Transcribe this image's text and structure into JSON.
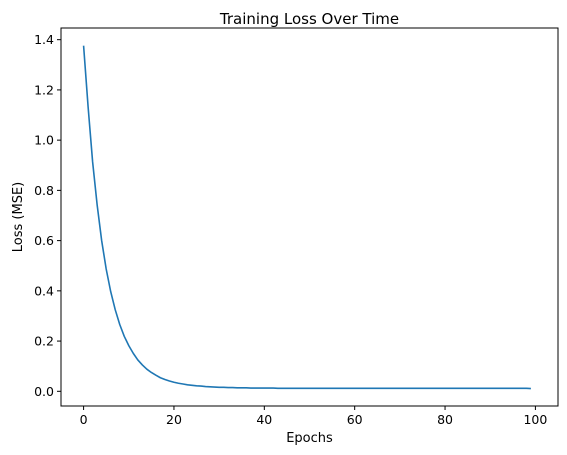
{
  "chart_data": {
    "type": "line",
    "title": "Training Loss Over Time",
    "xlabel": "Epochs",
    "ylabel": "Loss (MSE)",
    "xlim": [
      -5,
      105
    ],
    "ylim": [
      -0.0585,
      1.4465
    ],
    "xticks": [
      0,
      20,
      40,
      60,
      80,
      100
    ],
    "yticks": [
      0.0,
      0.2,
      0.4,
      0.6,
      0.8,
      1.0,
      1.2,
      1.4
    ],
    "xtick_labels": [
      "0",
      "20",
      "40",
      "60",
      "80",
      "100"
    ],
    "ytick_labels": [
      "0.0",
      "0.2",
      "0.4",
      "0.6",
      "0.8",
      "1.0",
      "1.2",
      "1.4"
    ],
    "grid": false,
    "legend": "none",
    "series": [
      {
        "color": "#1f77b4",
        "x": [
          0,
          1,
          2,
          3,
          4,
          5,
          6,
          7,
          8,
          9,
          10,
          11,
          12,
          13,
          14,
          15,
          16,
          17,
          18,
          19,
          20,
          21,
          22,
          23,
          24,
          25,
          26,
          27,
          28,
          29,
          30,
          31,
          32,
          33,
          34,
          35,
          36,
          37,
          38,
          39,
          40,
          41,
          42,
          43,
          44,
          45,
          46,
          47,
          48,
          49,
          50,
          51,
          52,
          53,
          54,
          55,
          56,
          57,
          58,
          59,
          60,
          61,
          62,
          63,
          64,
          65,
          66,
          67,
          68,
          69,
          70,
          71,
          72,
          73,
          74,
          75,
          76,
          77,
          78,
          79,
          80,
          81,
          82,
          83,
          84,
          85,
          86,
          87,
          88,
          89,
          90,
          91,
          92,
          93,
          94,
          95,
          96,
          97,
          98,
          99
        ],
        "values": [
          1.376,
          1.132,
          0.913,
          0.742,
          0.6,
          0.487,
          0.397,
          0.325,
          0.266,
          0.219,
          0.182,
          0.151,
          0.125,
          0.105,
          0.088,
          0.075,
          0.064,
          0.054,
          0.047,
          0.041,
          0.036,
          0.032,
          0.029,
          0.026,
          0.024,
          0.022,
          0.021,
          0.019,
          0.018,
          0.017,
          0.016,
          0.016,
          0.015,
          0.015,
          0.014,
          0.014,
          0.014,
          0.013,
          0.013,
          0.013,
          0.013,
          0.013,
          0.013,
          0.012,
          0.012,
          0.012,
          0.012,
          0.012,
          0.012,
          0.012,
          0.012,
          0.012,
          0.012,
          0.012,
          0.012,
          0.012,
          0.012,
          0.012,
          0.012,
          0.012,
          0.012,
          0.012,
          0.012,
          0.012,
          0.012,
          0.012,
          0.012,
          0.012,
          0.012,
          0.012,
          0.012,
          0.012,
          0.012,
          0.012,
          0.012,
          0.012,
          0.012,
          0.012,
          0.012,
          0.012,
          0.012,
          0.012,
          0.012,
          0.012,
          0.012,
          0.012,
          0.012,
          0.012,
          0.012,
          0.012,
          0.012,
          0.012,
          0.012,
          0.012,
          0.012,
          0.012,
          0.012,
          0.012,
          0.012,
          0.011
        ]
      }
    ]
  }
}
